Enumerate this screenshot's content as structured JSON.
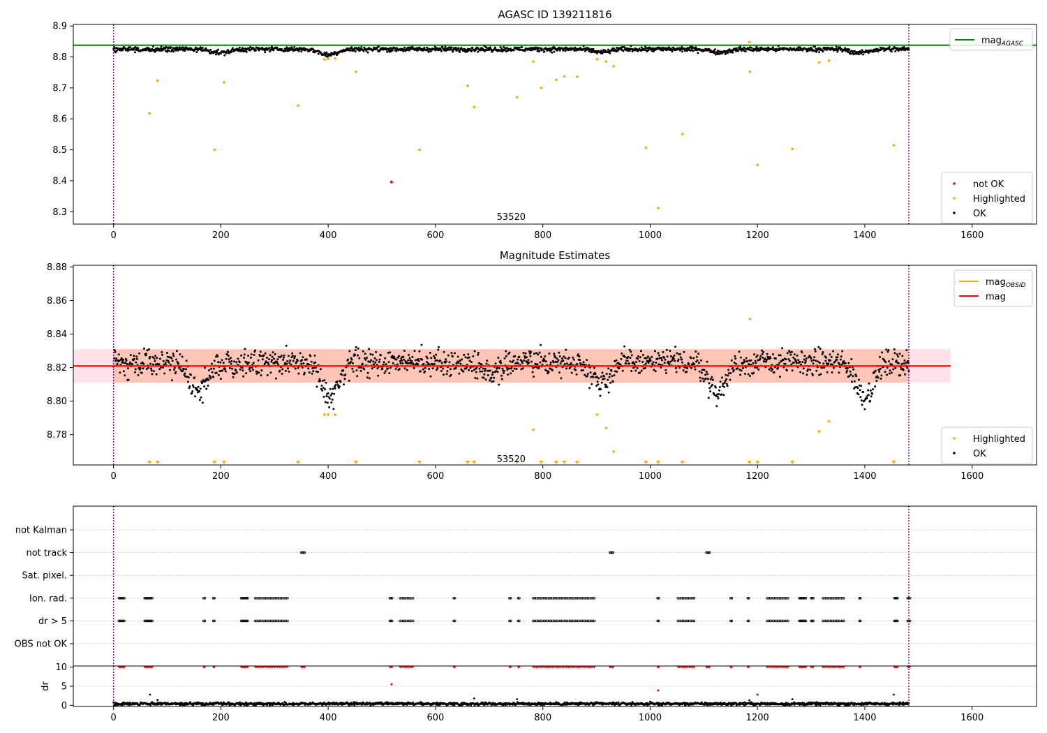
{
  "chart_data": [
    {
      "type": "scatter",
      "title": "AGASC ID 139211816",
      "xlim": [
        -75,
        1720
      ],
      "ylim": [
        8.26,
        8.905
      ],
      "xticks": [
        0,
        200,
        400,
        600,
        800,
        1000,
        1200,
        1400,
        1600
      ],
      "yticks": [
        8.3,
        8.4,
        8.5,
        8.6,
        8.7,
        8.8,
        8.9
      ],
      "hlines": [
        {
          "name": "mag_AGASC",
          "y": 8.838,
          "color": "#008000"
        }
      ],
      "vlines": [
        0,
        1482
      ],
      "annotations": [
        {
          "text": "53520",
          "x": 741,
          "y": 8.28
        }
      ],
      "legends": [
        {
          "position": "upper-right",
          "entries": [
            {
              "label": "mag",
              "sub": "AGASC",
              "marker": "line",
              "color": "#008000"
            }
          ]
        },
        {
          "position": "lower-right",
          "entries": [
            {
              "label": "not OK",
              "marker": "dot",
              "color": "#ff0000"
            },
            {
              "label": "Highlighted",
              "marker": "dot",
              "color": "#ffa500"
            },
            {
              "label": "OK",
              "marker": "dot",
              "color": "#000000"
            }
          ]
        }
      ],
      "ok_band": {
        "x_range": [
          0,
          1482
        ],
        "center": 8.825,
        "spread": 0.0075,
        "dips": [
          [
            200,
            0.012
          ],
          [
            400,
            0.018
          ],
          [
            910,
            0.01
          ],
          [
            1130,
            0.01
          ],
          [
            1390,
            0.012
          ]
        ]
      },
      "not_ok_points": [
        [
          518,
          8.396
        ]
      ],
      "highlighted_points": [
        [
          67,
          8.618
        ],
        [
          82,
          8.724
        ],
        [
          188,
          8.5
        ],
        [
          206,
          8.718
        ],
        [
          344,
          8.643
        ],
        [
          393,
          8.792
        ],
        [
          400,
          8.794
        ],
        [
          413,
          8.795
        ],
        [
          452,
          8.752
        ],
        [
          570,
          8.5
        ],
        [
          660,
          8.707
        ],
        [
          672,
          8.638
        ],
        [
          752,
          8.67
        ],
        [
          782,
          8.785
        ],
        [
          797,
          8.7
        ],
        [
          825,
          8.726
        ],
        [
          840,
          8.737
        ],
        [
          864,
          8.736
        ],
        [
          901,
          8.793
        ],
        [
          918,
          8.785
        ],
        [
          932,
          8.77
        ],
        [
          992,
          8.507
        ],
        [
          1015,
          8.312
        ],
        [
          1060,
          8.551
        ],
        [
          1185,
          8.848
        ],
        [
          1186,
          8.752
        ],
        [
          1200,
          8.451
        ],
        [
          1265,
          8.503
        ],
        [
          1315,
          8.782
        ],
        [
          1333,
          8.788
        ],
        [
          1454,
          8.515
        ]
      ]
    },
    {
      "type": "scatter",
      "title": "Magnitude Estimates",
      "xlim": [
        -75,
        1720
      ],
      "ylim": [
        8.762,
        8.881
      ],
      "xticks": [
        0,
        200,
        400,
        600,
        800,
        1000,
        1200,
        1400,
        1600
      ],
      "yticks": [
        8.78,
        8.8,
        8.82,
        8.84,
        8.86,
        8.88
      ],
      "hlines": [
        {
          "name": "mag_OBSID",
          "y": 8.821,
          "x_range": [
            0,
            1482
          ],
          "color": "#ffa500"
        },
        {
          "name": "mag",
          "y": 8.821,
          "x_range": [
            -75,
            1560
          ],
          "color": "#ff0000"
        }
      ],
      "bands": [
        {
          "y_range": [
            8.811,
            8.831
          ],
          "x_range": [
            -75,
            1560
          ],
          "color": "#ffc0cb"
        },
        {
          "y_range": [
            8.811,
            8.831
          ],
          "x_range": [
            0,
            1482
          ],
          "color": "#ffa07a"
        }
      ],
      "vlines": [
        0,
        1482
      ],
      "annotations": [
        {
          "text": "53520",
          "x": 741,
          "y": 8.765
        }
      ],
      "legends": [
        {
          "position": "upper-right",
          "entries": [
            {
              "label": "mag",
              "sub": "OBSID",
              "marker": "line",
              "color": "#ffa500"
            },
            {
              "label": "mag",
              "marker": "line",
              "color": "#ff0000"
            }
          ]
        },
        {
          "position": "lower-right",
          "entries": [
            {
              "label": "Highlighted",
              "marker": "dot",
              "color": "#ffa500"
            },
            {
              "label": "OK",
              "marker": "dot",
              "color": "#000000"
            }
          ]
        }
      ],
      "ok_band": {
        "x_range": [
          0,
          1482
        ],
        "center": 8.823,
        "spread": 0.0075,
        "dips": [
          [
            160,
            0.018
          ],
          [
            405,
            0.022
          ],
          [
            700,
            0.006
          ],
          [
            910,
            0.012
          ],
          [
            1125,
            0.018
          ],
          [
            1400,
            0.02
          ]
        ]
      },
      "highlighted_points": [
        [
          393,
          8.792
        ],
        [
          400,
          8.792
        ],
        [
          413,
          8.792
        ],
        [
          782,
          8.783
        ],
        [
          901,
          8.792
        ],
        [
          918,
          8.784
        ],
        [
          932,
          8.77
        ],
        [
          1186,
          8.849
        ],
        [
          1315,
          8.782
        ],
        [
          1333,
          8.788
        ]
      ],
      "clipped_low_x": [
        67,
        82,
        188,
        206,
        344,
        452,
        570,
        660,
        672,
        752,
        797,
        825,
        840,
        864,
        992,
        1015,
        1060,
        1185,
        1200,
        1265,
        1454
      ]
    },
    {
      "type": "scatter",
      "xlim": [
        -75,
        1720
      ],
      "categories": [
        "not Kalman",
        "not track",
        "Sat. pixel.",
        "Ion. rad.",
        "dr > 5",
        "OBS not OK"
      ],
      "vlines": [
        0,
        1482
      ],
      "flag_segments": {
        "not track": [
          [
            350,
            357
          ],
          [
            925,
            932
          ],
          [
            1105,
            1112
          ]
        ],
        "Ion. rad.": [
          [
            10,
            20
          ],
          [
            58,
            72
          ],
          [
            168,
            170
          ],
          [
            186,
            188
          ],
          [
            238,
            250
          ],
          [
            264,
            324
          ],
          [
            515,
            520
          ],
          [
            534,
            560
          ],
          [
            634,
            636
          ],
          [
            738,
            740
          ],
          [
            754,
            756
          ],
          [
            782,
            898
          ],
          [
            1014,
            1016
          ],
          [
            1052,
            1084
          ],
          [
            1150,
            1152
          ],
          [
            1182,
            1184
          ],
          [
            1218,
            1258
          ],
          [
            1278,
            1290
          ],
          [
            1300,
            1304
          ],
          [
            1322,
            1362
          ],
          [
            1390,
            1392
          ],
          [
            1455,
            1462
          ],
          [
            1480,
            1484
          ]
        ],
        "dr > 5": [
          [
            10,
            20
          ],
          [
            58,
            72
          ],
          [
            168,
            170
          ],
          [
            186,
            188
          ],
          [
            238,
            250
          ],
          [
            264,
            324
          ],
          [
            515,
            520
          ],
          [
            534,
            560
          ],
          [
            634,
            636
          ],
          [
            738,
            740
          ],
          [
            754,
            756
          ],
          [
            782,
            898
          ],
          [
            1014,
            1016
          ],
          [
            1052,
            1084
          ],
          [
            1150,
            1152
          ],
          [
            1182,
            1184
          ],
          [
            1218,
            1258
          ],
          [
            1278,
            1290
          ],
          [
            1300,
            1304
          ],
          [
            1322,
            1362
          ],
          [
            1390,
            1392
          ],
          [
            1455,
            1462
          ],
          [
            1480,
            1484
          ]
        ]
      }
    },
    {
      "type": "scatter",
      "xlim": [
        -75,
        1720
      ],
      "ylim": [
        -0.3,
        10.3
      ],
      "ylabel": "dr",
      "xticks": [
        0,
        200,
        400,
        600,
        800,
        1000,
        1200,
        1400,
        1600
      ],
      "yticks": [
        0,
        5,
        10
      ],
      "vlines": [
        0,
        1482
      ],
      "dr_baseline": {
        "x_range": [
          0,
          1482
        ],
        "center": 0.4,
        "spread": 0.35
      },
      "dr_outliers": [
        [
          68,
          2.8
        ],
        [
          82,
          1.4
        ],
        [
          518,
          5.5
        ],
        [
          672,
          1.8
        ],
        [
          752,
          1.6
        ],
        [
          1015,
          3.9
        ],
        [
          1185,
          1.3
        ],
        [
          1200,
          2.8
        ],
        [
          1265,
          1.6
        ],
        [
          1454,
          2.8
        ]
      ],
      "dr_red_points": [
        [
          518,
          5.5
        ],
        [
          1015,
          3.9
        ],
        [
          1200,
          2.8
        ]
      ],
      "dr_clipped_segments": [
        [
          10,
          20
        ],
        [
          58,
          72
        ],
        [
          168,
          170
        ],
        [
          186,
          188
        ],
        [
          238,
          250
        ],
        [
          264,
          324
        ],
        [
          350,
          357
        ],
        [
          515,
          520
        ],
        [
          534,
          560
        ],
        [
          634,
          636
        ],
        [
          738,
          740
        ],
        [
          754,
          756
        ],
        [
          782,
          898
        ],
        [
          925,
          932
        ],
        [
          1014,
          1016
        ],
        [
          1052,
          1084
        ],
        [
          1105,
          1112
        ],
        [
          1150,
          1152
        ],
        [
          1182,
          1184
        ],
        [
          1218,
          1258
        ],
        [
          1278,
          1290
        ],
        [
          1300,
          1304
        ],
        [
          1322,
          1362
        ],
        [
          1390,
          1392
        ],
        [
          1455,
          1462
        ],
        [
          1480,
          1484
        ]
      ]
    }
  ]
}
